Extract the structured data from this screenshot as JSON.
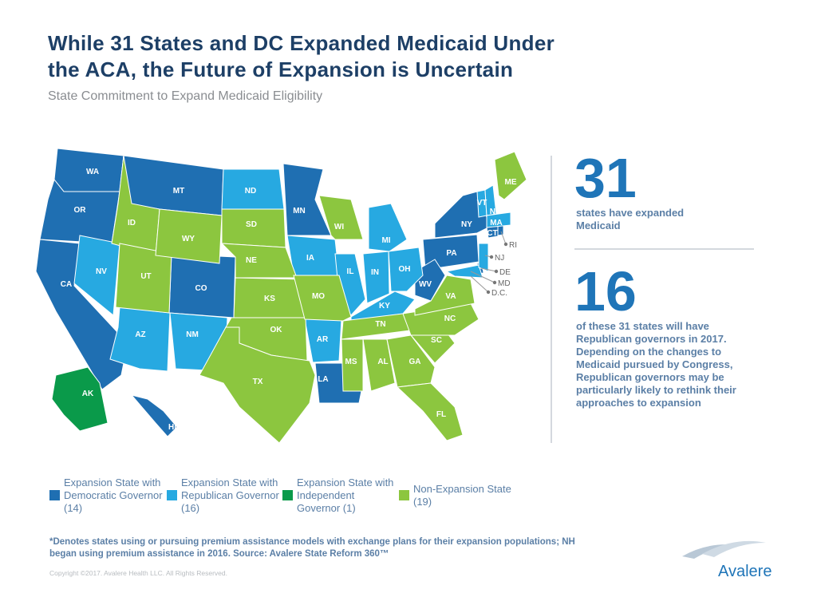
{
  "header": {
    "title": [
      "While 31 States and DC Expanded Medicaid Under",
      "the ACA, the Future of Expansion is Uncertain"
    ],
    "subtitle": "State Commitment to Expand Medicaid Eligibility"
  },
  "map": {
    "groups": [
      {
        "label": "Expansion State with Democratic Governor (14)",
        "color": "#1f6fb2",
        "states": [
          "WA",
          "OR",
          "CA",
          "MT",
          "CO",
          "MN",
          "NY",
          "PA",
          "CT",
          "RI",
          "DE",
          "WV",
          "LA",
          "HI"
        ]
      },
      {
        "label": "Expansion State with Republican Governor (16)",
        "color": "#27a9e1",
        "states": [
          "NV",
          "AZ",
          "NM",
          "ND",
          "IA",
          "IL",
          "MI",
          "IN",
          "OH",
          "KY",
          "AR",
          "VT",
          "NH",
          "MA",
          "MD",
          "NJ"
        ]
      },
      {
        "label": "Expansion State with Independent Governor (1)",
        "color": "#0a9a4a",
        "states": [
          "AK"
        ]
      },
      {
        "label": "Non-Expansion State (19)",
        "color": "#8cc63f",
        "states": [
          "ID",
          "UT",
          "WY",
          "SD",
          "NE",
          "KS",
          "OK",
          "TX",
          "MO",
          "WI",
          "TN",
          "MS",
          "AL",
          "GA",
          "FL",
          "SC",
          "NC",
          "VA",
          "ME"
        ]
      }
    ],
    "extra_label": "D.C."
  },
  "stats": [
    {
      "number": "31",
      "text": "states have expanded Medicaid"
    },
    {
      "number": "16",
      "text": "of these 31 states will have Republican governors in 2017. Depending on the changes to Medicaid pursued by Congress, Republican governors may be particularly likely to rethink their approaches to expansion"
    }
  ],
  "footnote": "*Denotes states using or pursuing premium assistance models with exchange plans for their expansion populations; NH began using premium assistance in 2016. Source: Avalere State Reform 360™",
  "copyright": "Copyright ©2017. Avalere Health LLC. All Rights Reserved.",
  "logo": "Avalere"
}
